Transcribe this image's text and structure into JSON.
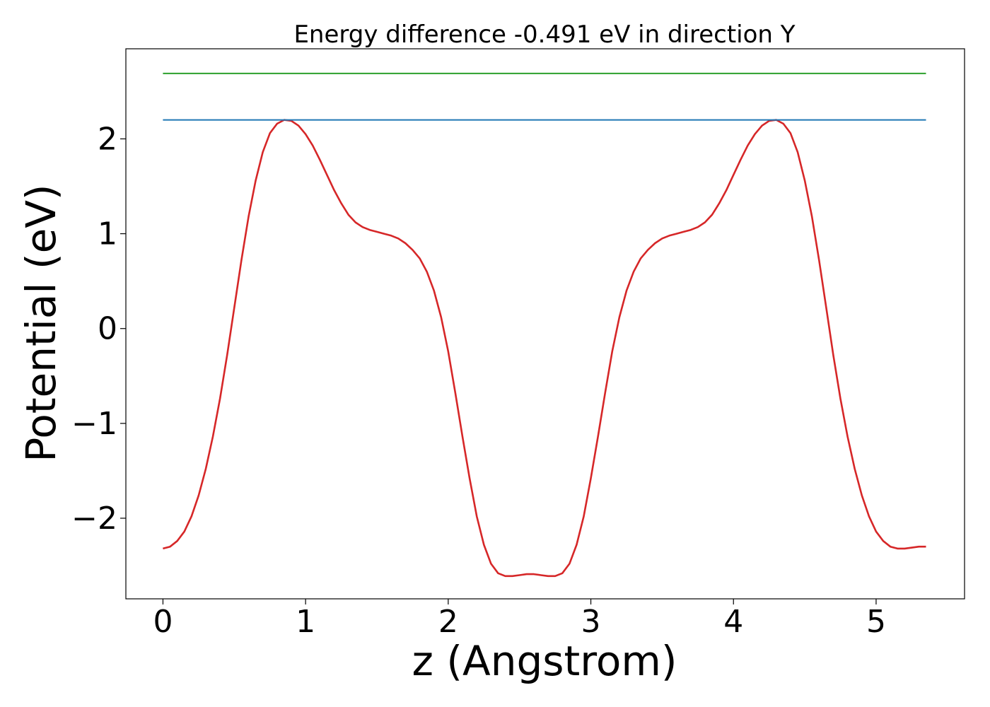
{
  "chart_data": {
    "type": "line",
    "title": "Energy difference -0.491 eV in direction Y",
    "xlabel": "z (Angstrom)",
    "ylabel": "Potential (eV)",
    "xlim": [
      -0.26,
      5.62
    ],
    "ylim": [
      -2.85,
      2.95
    ],
    "xticks": [
      0,
      1,
      2,
      3,
      4,
      5
    ],
    "xtick_labels": [
      "0",
      "1",
      "2",
      "3",
      "4",
      "5"
    ],
    "yticks": [
      -2,
      -1,
      0,
      1,
      2
    ],
    "ytick_labels": [
      "−2",
      "−1",
      "0",
      "1",
      "2"
    ],
    "grid": false,
    "series": [
      {
        "color": "#d62728",
        "x": [
          0.0,
          0.05,
          0.1,
          0.15,
          0.2,
          0.25,
          0.3,
          0.35,
          0.4,
          0.45,
          0.5,
          0.55,
          0.6,
          0.65,
          0.7,
          0.75,
          0.8,
          0.85,
          0.9,
          0.95,
          1.0,
          1.05,
          1.1,
          1.15,
          1.2,
          1.25,
          1.3,
          1.35,
          1.4,
          1.45,
          1.5,
          1.55,
          1.6,
          1.65,
          1.7,
          1.75,
          1.8,
          1.85,
          1.9,
          1.95,
          2.0,
          2.05,
          2.1,
          2.15,
          2.2,
          2.25,
          2.3,
          2.35,
          2.4,
          2.45,
          2.5,
          2.55,
          2.6,
          2.65,
          2.7,
          2.75,
          2.8,
          2.85,
          2.9,
          2.95,
          3.0,
          3.05,
          3.1,
          3.15,
          3.2,
          3.25,
          3.3,
          3.35,
          3.4,
          3.45,
          3.5,
          3.55,
          3.6,
          3.65,
          3.7,
          3.75,
          3.8,
          3.85,
          3.9,
          3.95,
          4.0,
          4.05,
          4.1,
          4.15,
          4.2,
          4.25,
          4.3,
          4.35,
          4.4,
          4.45,
          4.5,
          4.55,
          4.6,
          4.65,
          4.7,
          4.75,
          4.8,
          4.85,
          4.9,
          4.95,
          5.0,
          5.05,
          5.1,
          5.15,
          5.2,
          5.25,
          5.3,
          5.35
        ],
        "y": [
          -2.32,
          -2.3,
          -2.24,
          -2.14,
          -1.98,
          -1.76,
          -1.48,
          -1.14,
          -0.74,
          -0.28,
          0.22,
          0.72,
          1.18,
          1.56,
          1.86,
          2.06,
          2.16,
          2.2,
          2.19,
          2.14,
          2.05,
          1.93,
          1.78,
          1.62,
          1.46,
          1.32,
          1.2,
          1.12,
          1.07,
          1.04,
          1.02,
          1.0,
          0.98,
          0.95,
          0.9,
          0.83,
          0.74,
          0.6,
          0.4,
          0.12,
          -0.24,
          -0.68,
          -1.14,
          -1.58,
          -1.98,
          -2.28,
          -2.48,
          -2.58,
          -2.61,
          -2.61,
          -2.6,
          -2.59,
          -2.59,
          -2.6,
          -2.61,
          -2.61,
          -2.58,
          -2.48,
          -2.28,
          -1.98,
          -1.58,
          -1.14,
          -0.68,
          -0.24,
          0.12,
          0.4,
          0.6,
          0.74,
          0.83,
          0.9,
          0.95,
          0.98,
          1.0,
          1.02,
          1.04,
          1.07,
          1.12,
          1.2,
          1.32,
          1.46,
          1.62,
          1.78,
          1.93,
          2.05,
          2.14,
          2.19,
          2.2,
          2.16,
          2.06,
          1.86,
          1.56,
          1.18,
          0.72,
          0.22,
          -0.28,
          -0.74,
          -1.14,
          -1.48,
          -1.76,
          -1.98,
          -2.14,
          -2.24,
          -2.3,
          -2.32,
          -2.32,
          -2.31,
          -2.3,
          -2.3
        ]
      },
      {
        "color": "#1f77b4",
        "x": [
          0.0,
          5.35
        ],
        "y": [
          2.2,
          2.2
        ]
      },
      {
        "color": "#2ca02c",
        "x": [
          0.0,
          5.35
        ],
        "y": [
          2.69,
          2.69
        ]
      }
    ]
  }
}
